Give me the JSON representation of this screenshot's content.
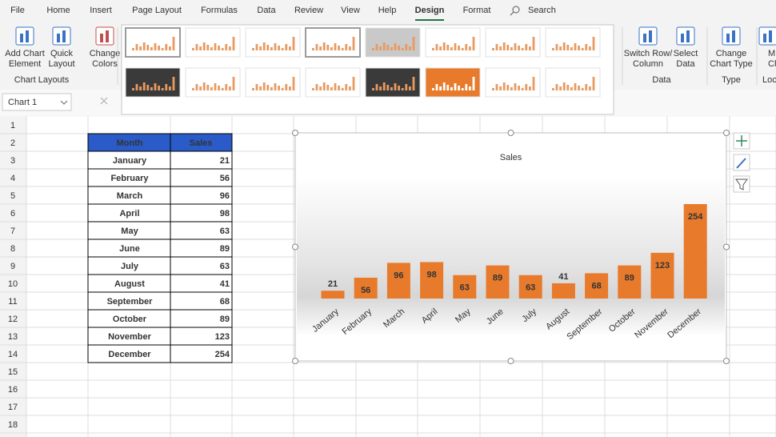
{
  "ribbon": {
    "tabs": [
      "File",
      "Home",
      "Insert",
      "Page Layout",
      "Formulas",
      "Data",
      "Review",
      "View",
      "Help",
      "Design",
      "Format"
    ],
    "search": "Search",
    "buttons": [
      [
        "Add Chart",
        "Element"
      ],
      [
        "Quick",
        "Layout"
      ],
      [
        "Change",
        "Colors"
      ],
      [
        "Switch Row/",
        "Column"
      ],
      [
        "Select",
        "Data"
      ],
      [
        "Change",
        "Chart Type"
      ],
      [
        "M",
        "Ch"
      ]
    ],
    "groups": [
      "Chart Layouts",
      "Data",
      "Type",
      "Loc"
    ]
  },
  "formula_bar": {
    "name_box": "Chart 1"
  },
  "rows": [
    1,
    2,
    3,
    4,
    5,
    6,
    7,
    8,
    9,
    10,
    11,
    12,
    13,
    14,
    15,
    16,
    17,
    18
  ],
  "table": {
    "header": [
      "Month",
      "Sales"
    ]
  },
  "chart_data": {
    "type": "bar",
    "title": "Sales",
    "categories": [
      "January",
      "February",
      "March",
      "April",
      "May",
      "June",
      "July",
      "August",
      "September",
      "October",
      "November",
      "December"
    ],
    "values": [
      21,
      56,
      96,
      98,
      63,
      89,
      63,
      41,
      68,
      89,
      123,
      254
    ],
    "color": "#e87a2c"
  }
}
